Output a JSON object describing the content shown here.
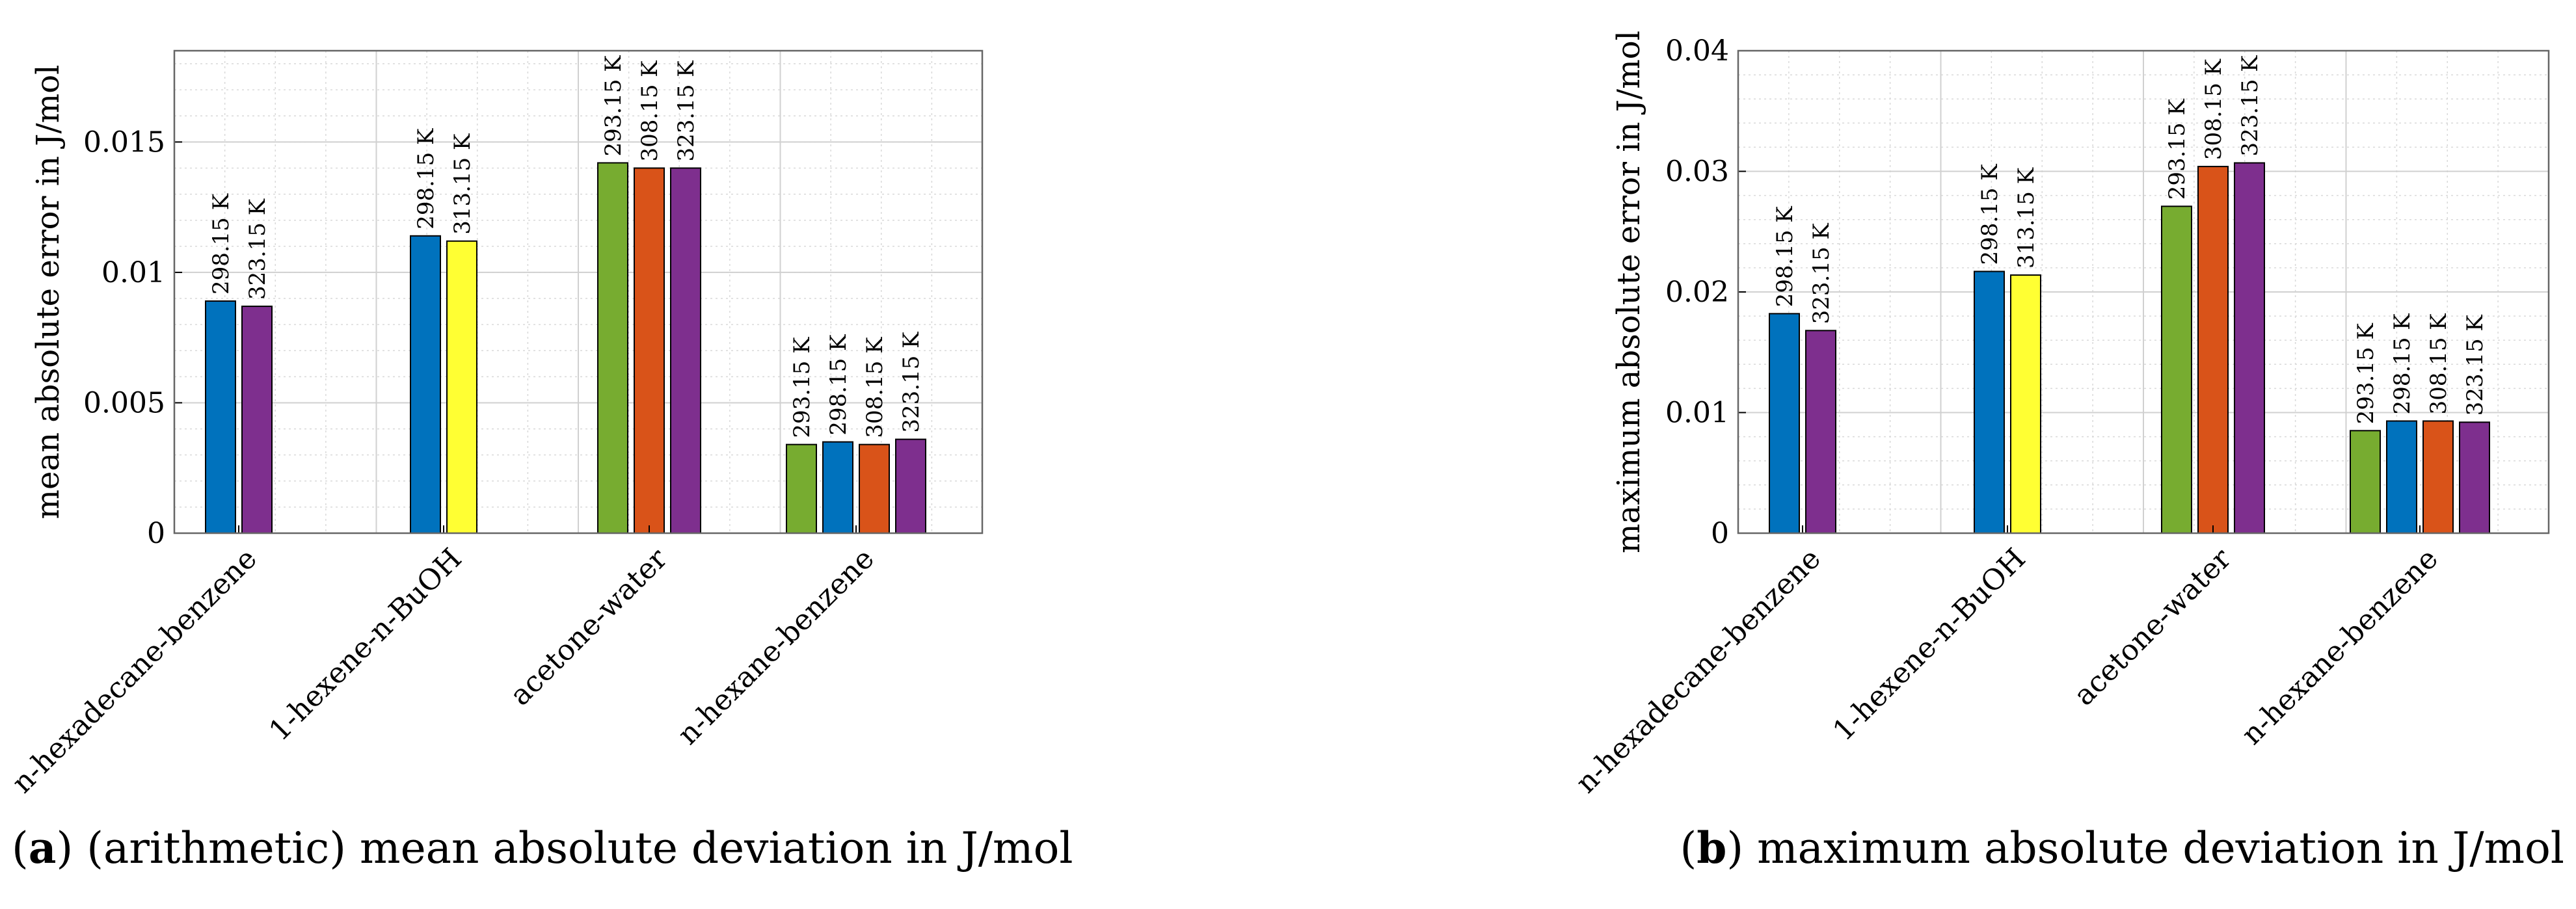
{
  "chart_data": [
    {
      "type": "bar",
      "ylabel": "mean absolute error in J/mol",
      "ylim": [
        0,
        0.0185
      ],
      "yticks": [
        0,
        0.005,
        0.01,
        0.015
      ],
      "ytick_labels": [
        "0",
        "0.005",
        "0.01",
        "0.015"
      ],
      "grid": true,
      "groups": [
        {
          "category": "n-hexadecane-benzene",
          "bars": [
            {
              "temp": "298.15 K",
              "value": 0.0089,
              "color": "#0072BD"
            },
            {
              "temp": "323.15 K",
              "value": 0.0087,
              "color": "#7E2F8E"
            }
          ]
        },
        {
          "category": "1-hexene-n-BuOH",
          "bars": [
            {
              "temp": "298.15 K",
              "value": 0.0114,
              "color": "#0072BD"
            },
            {
              "temp": "313.15 K",
              "value": 0.0112,
              "color": "#FFFF33"
            }
          ]
        },
        {
          "category": "acetone-water",
          "bars": [
            {
              "temp": "293.15 K",
              "value": 0.0142,
              "color": "#77AC30"
            },
            {
              "temp": "308.15 K",
              "value": 0.014,
              "color": "#D95319"
            },
            {
              "temp": "323.15 K",
              "value": 0.014,
              "color": "#7E2F8E"
            }
          ]
        },
        {
          "category": "n-hexane-benzene",
          "bars": [
            {
              "temp": "293.15 K",
              "value": 0.0034,
              "color": "#77AC30"
            },
            {
              "temp": "298.15 K",
              "value": 0.0035,
              "color": "#0072BD"
            },
            {
              "temp": "308.15 K",
              "value": 0.0034,
              "color": "#D95319"
            },
            {
              "temp": "323.15 K",
              "value": 0.0036,
              "color": "#7E2F8E"
            }
          ]
        }
      ]
    },
    {
      "type": "bar",
      "ylabel": "maximum absolute error in J/mol",
      "ylim": [
        0,
        0.04
      ],
      "yticks": [
        0,
        0.01,
        0.02,
        0.03,
        0.04
      ],
      "ytick_labels": [
        "0",
        "0.01",
        "0.02",
        "0.03",
        "0.04"
      ],
      "grid": true,
      "groups": [
        {
          "category": "n-hexadecane-benzene",
          "bars": [
            {
              "temp": "298.15 K",
              "value": 0.0182,
              "color": "#0072BD"
            },
            {
              "temp": "323.15 K",
              "value": 0.0168,
              "color": "#7E2F8E"
            }
          ]
        },
        {
          "category": "1-hexene-n-BuOH",
          "bars": [
            {
              "temp": "298.15 K",
              "value": 0.0217,
              "color": "#0072BD"
            },
            {
              "temp": "313.15 K",
              "value": 0.0214,
              "color": "#FFFF33"
            }
          ]
        },
        {
          "category": "acetone-water",
          "bars": [
            {
              "temp": "293.15 K",
              "value": 0.0271,
              "color": "#77AC30"
            },
            {
              "temp": "308.15 K",
              "value": 0.0304,
              "color": "#D95319"
            },
            {
              "temp": "323.15 K",
              "value": 0.0307,
              "color": "#7E2F8E"
            }
          ]
        },
        {
          "category": "n-hexane-benzene",
          "bars": [
            {
              "temp": "293.15 K",
              "value": 0.0085,
              "color": "#77AC30"
            },
            {
              "temp": "298.15 K",
              "value": 0.0093,
              "color": "#0072BD"
            },
            {
              "temp": "308.15 K",
              "value": 0.0093,
              "color": "#D95319"
            },
            {
              "temp": "323.15 K",
              "value": 0.0092,
              "color": "#7E2F8E"
            }
          ]
        }
      ]
    }
  ],
  "captions": {
    "a": {
      "tag": "a",
      "prefix": "(",
      "suffix": ")",
      "text": " (arithmetic) mean absolute deviation in J/mol"
    },
    "b": {
      "tag": "b",
      "prefix": "(",
      "suffix": ")",
      "text": " maximum absolute deviation in J/mol"
    }
  }
}
